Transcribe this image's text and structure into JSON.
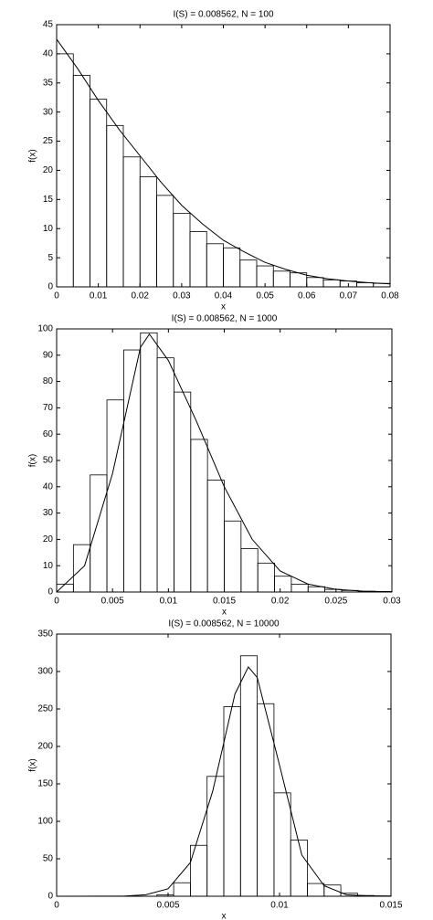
{
  "chart_data": [
    {
      "type": "histogram",
      "title": "I(S) = 0.008562, N = 100",
      "x_label": "x",
      "y_label": "f(x)",
      "bins": [
        0,
        0.004,
        0.008,
        0.012,
        0.016,
        0.02,
        0.024,
        0.028,
        0.032,
        0.036,
        0.04,
        0.044,
        0.048,
        0.052,
        0.056,
        0.06,
        0.064,
        0.068,
        0.072,
        0.076,
        0.08
      ],
      "values": [
        40,
        36.3,
        32.2,
        27.7,
        22.3,
        18.9,
        15.7,
        12.6,
        9.5,
        7.4,
        6.7,
        4.6,
        3.6,
        2.7,
        2.4,
        1.6,
        1.2,
        1.0,
        0.7,
        0.6
      ],
      "curve": {
        "x": [
          0,
          0.005,
          0.01,
          0.015,
          0.02,
          0.025,
          0.03,
          0.035,
          0.04,
          0.045,
          0.05,
          0.055,
          0.06,
          0.065,
          0.07,
          0.075,
          0.08
        ],
        "y": [
          42.5,
          37.5,
          32,
          27,
          22.5,
          18,
          14,
          10.8,
          8,
          6,
          4.2,
          3,
          2,
          1.4,
          1,
          0.7,
          0.5
        ]
      },
      "color": "#000000",
      "xlim": [
        0,
        0.08
      ],
      "xticks": [
        0,
        0.01,
        0.02,
        0.03,
        0.04,
        0.05,
        0.06,
        0.07,
        0.08
      ],
      "ylim": [
        0,
        45
      ],
      "yticks": [
        0,
        5,
        10,
        15,
        20,
        25,
        30,
        35,
        40,
        45
      ]
    },
    {
      "type": "histogram",
      "title": "I(S) = 0.008562, N = 1000",
      "x_label": "x",
      "y_label": "f(x)",
      "bins": [
        0,
        0.0015,
        0.003,
        0.0045,
        0.006,
        0.0075,
        0.009,
        0.0105,
        0.012,
        0.0135,
        0.015,
        0.0165,
        0.018,
        0.0195,
        0.021,
        0.0225,
        0.024,
        0.0255,
        0.027,
        0.0285,
        0.03
      ],
      "values": [
        3,
        18,
        44.5,
        73,
        92,
        98.5,
        89,
        76,
        58,
        42.5,
        27,
        16.5,
        11,
        6,
        3,
        2,
        1,
        0.6,
        0.3,
        0.2
      ],
      "curve": {
        "x": [
          0,
          0.0025,
          0.005,
          0.0075,
          0.0083,
          0.01,
          0.0125,
          0.015,
          0.0175,
          0.02,
          0.0225,
          0.025,
          0.0275,
          0.03
        ],
        "y": [
          0,
          10,
          45,
          93,
          98,
          88,
          65,
          40,
          20,
          8,
          3,
          1,
          0.3,
          0.1
        ]
      },
      "color": "#000000",
      "xlim": [
        0,
        0.03
      ],
      "xticks": [
        0,
        0.005,
        0.01,
        0.015,
        0.02,
        0.025,
        0.03
      ],
      "ylim": [
        0,
        100
      ],
      "yticks": [
        0,
        10,
        20,
        30,
        40,
        50,
        60,
        70,
        80,
        90,
        100
      ]
    },
    {
      "type": "histogram",
      "title": "I(S) = 0.008562, N = 10000",
      "x_label": "x",
      "y_label": "f(x)",
      "bins": [
        0,
        0.00075,
        0.0015,
        0.00225,
        0.003,
        0.00375,
        0.0045,
        0.00525,
        0.006,
        0.00675,
        0.0075,
        0.00825,
        0.009,
        0.00975,
        0.0105,
        0.01125,
        0.012,
        0.01275,
        0.0135,
        0.01425,
        0.015
      ],
      "values": [
        0,
        0,
        0,
        0,
        0,
        0,
        2,
        18,
        68,
        160,
        253,
        321,
        257,
        138,
        75,
        17,
        15,
        4,
        1,
        0.5
      ],
      "curve": {
        "x": [
          0,
          0.003,
          0.004,
          0.005,
          0.006,
          0.007,
          0.008,
          0.0086,
          0.009,
          0.01,
          0.011,
          0.012,
          0.013,
          0.014,
          0.015
        ],
        "y": [
          0,
          0.2,
          2,
          10,
          45,
          140,
          270,
          306,
          292,
          175,
          55,
          14,
          2,
          0.5,
          0
        ]
      },
      "color": "#000000",
      "xlim": [
        0,
        0.015
      ],
      "xticks": [
        0,
        0.005,
        0.01,
        0.015
      ],
      "ylim": [
        0,
        350
      ],
      "yticks": [
        0,
        50,
        100,
        150,
        200,
        250,
        300,
        350
      ]
    }
  ]
}
